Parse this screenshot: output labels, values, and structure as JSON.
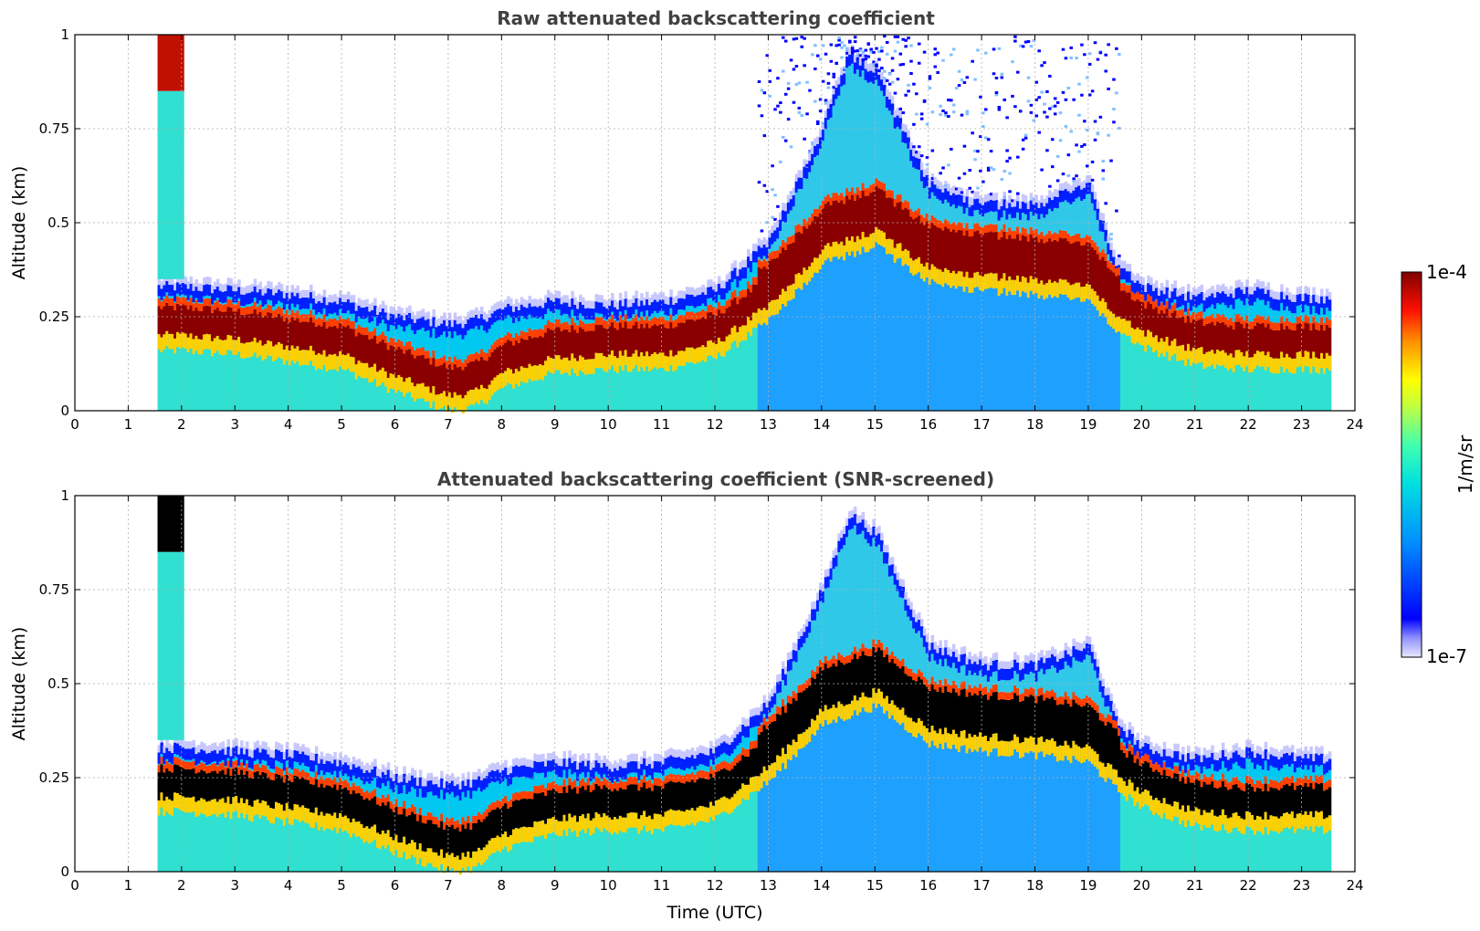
{
  "chart_data": [
    {
      "type": "heatmap",
      "title": "Raw attenuated backscattering coefficient",
      "xlabel": "",
      "ylabel": "Altitude (km)",
      "xlim": [
        0,
        24
      ],
      "ylim": [
        0,
        1
      ],
      "x_ticks": [
        "0",
        "1",
        "2",
        "3",
        "4",
        "5",
        "6",
        "7",
        "8",
        "9",
        "10",
        "11",
        "12",
        "13",
        "14",
        "15",
        "16",
        "17",
        "18",
        "19",
        "20",
        "21",
        "22",
        "23",
        "24"
      ],
      "y_ticks": [
        "0",
        "0.25",
        "0.5",
        "0.75",
        "1"
      ],
      "grid": true,
      "data_time_range_utc": [
        1.55,
        23.55
      ],
      "layer_top_km": [
        [
          1.55,
          0.33
        ],
        [
          2,
          0.33
        ],
        [
          3,
          0.32
        ],
        [
          4,
          0.31
        ],
        [
          5,
          0.29
        ],
        [
          6,
          0.25
        ],
        [
          7,
          0.23
        ],
        [
          7.5,
          0.24
        ],
        [
          8,
          0.27
        ],
        [
          9,
          0.29
        ],
        [
          10,
          0.28
        ],
        [
          11,
          0.29
        ],
        [
          12,
          0.32
        ],
        [
          13,
          0.45
        ],
        [
          13.5,
          0.6
        ],
        [
          14,
          0.75
        ],
        [
          14.5,
          0.95
        ],
        [
          15,
          0.9
        ],
        [
          15.5,
          0.75
        ],
        [
          16,
          0.6
        ],
        [
          17,
          0.55
        ],
        [
          18,
          0.55
        ],
        [
          19,
          0.6
        ],
        [
          19.5,
          0.4
        ],
        [
          20,
          0.33
        ],
        [
          21,
          0.3
        ],
        [
          22,
          0.32
        ],
        [
          23,
          0.3
        ],
        [
          23.55,
          0.3
        ]
      ],
      "layer_core_km": [
        [
          1.55,
          0.22
        ],
        [
          2,
          0.22
        ],
        [
          3,
          0.21
        ],
        [
          4,
          0.19
        ],
        [
          5,
          0.17
        ],
        [
          6,
          0.11
        ],
        [
          7,
          0.06
        ],
        [
          7.5,
          0.07
        ],
        [
          8,
          0.12
        ],
        [
          9,
          0.16
        ],
        [
          10,
          0.17
        ],
        [
          11,
          0.17
        ],
        [
          12,
          0.2
        ],
        [
          13,
          0.3
        ],
        [
          14,
          0.45
        ],
        [
          15,
          0.5
        ],
        [
          16,
          0.4
        ],
        [
          17,
          0.38
        ],
        [
          18,
          0.37
        ],
        [
          19,
          0.35
        ],
        [
          19.5,
          0.28
        ],
        [
          20,
          0.23
        ],
        [
          21,
          0.18
        ],
        [
          22,
          0.17
        ],
        [
          23,
          0.17
        ],
        [
          23.55,
          0.17
        ]
      ]
    },
    {
      "type": "heatmap",
      "title": "Attenuated backscattering coefficient (SNR-screened)",
      "xlabel": "Time (UTC)",
      "ylabel": "Altitude (km)",
      "xlim": [
        0,
        24
      ],
      "ylim": [
        0,
        1
      ],
      "x_ticks": [
        "0",
        "1",
        "2",
        "3",
        "4",
        "5",
        "6",
        "7",
        "8",
        "9",
        "10",
        "11",
        "12",
        "13",
        "14",
        "15",
        "16",
        "17",
        "18",
        "19",
        "20",
        "21",
        "22",
        "23",
        "24"
      ],
      "y_ticks": [
        "0",
        "0.25",
        "0.5",
        "0.75",
        "1"
      ],
      "grid": true,
      "data_time_range_utc": [
        1.55,
        23.55
      ]
    }
  ],
  "colorbar": {
    "label": "1/m/sr",
    "max_label": "1e-4",
    "min_label": "1e-7",
    "scale": "log",
    "range": [
      1e-07,
      0.0001
    ],
    "colormap": "jet"
  }
}
